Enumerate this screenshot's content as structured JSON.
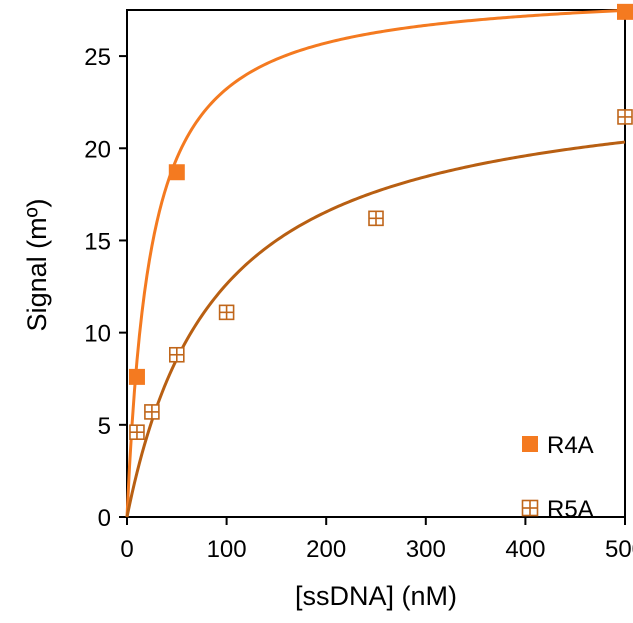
{
  "chart_data": {
    "type": "scatter",
    "title": "",
    "xlabel": "[ssDNA] (nM)",
    "ylabel": "Signal (mº)",
    "xlim": [
      0,
      500
    ],
    "ylim": [
      0,
      27.5
    ],
    "xticks": [
      0,
      100,
      200,
      300,
      400,
      500
    ],
    "yticks": [
      0,
      5,
      10,
      15,
      20,
      25
    ],
    "grid": false,
    "legend_position": "bottom-right",
    "series": [
      {
        "name": "R4A",
        "marker": "filled-square",
        "color": "#F47A20",
        "points": [
          {
            "x": 10,
            "y": 7.6
          },
          {
            "x": 50,
            "y": 18.7
          },
          {
            "x": 500,
            "y": 27.4
          }
        ],
        "fit": {
          "model": "hyperbolic",
          "bmax": 28.8,
          "kd": 24,
          "color": "#F47A20"
        }
      },
      {
        "name": "R5A",
        "marker": "open-square-plus",
        "color": "#C0661A",
        "points": [
          {
            "x": 10,
            "y": 4.6
          },
          {
            "x": 25,
            "y": 5.7
          },
          {
            "x": 50,
            "y": 8.8
          },
          {
            "x": 100,
            "y": 11.1
          },
          {
            "x": 250,
            "y": 16.2
          },
          {
            "x": 500,
            "y": 21.7
          }
        ],
        "fit": {
          "model": "hyperbolic",
          "bmax": 24.0,
          "kd": 90,
          "color": "#B85F12"
        }
      }
    ]
  }
}
